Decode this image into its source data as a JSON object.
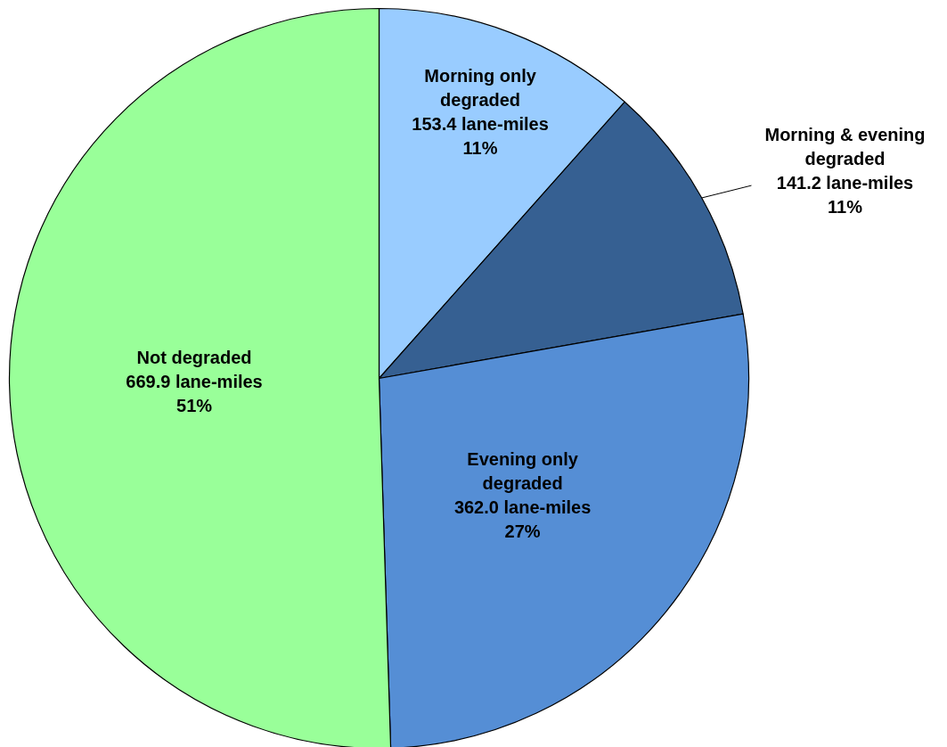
{
  "chart_data": {
    "type": "pie",
    "categories": [
      "Morning only degraded",
      "Morning & evening degraded",
      "Evening only degraded",
      "Not degraded"
    ],
    "values": [
      153.4,
      141.2,
      362.0,
      669.9
    ],
    "colors": [
      "#99ccff",
      "#366092",
      "#558ed5",
      "#99ff99"
    ],
    "value_labels": [
      "153.4 lane-miles\n11%",
      "141.2 lane-miles\n11%",
      "362.0 lane-miles\n27%",
      "669.9 lane-miles\n51%"
    ]
  }
}
